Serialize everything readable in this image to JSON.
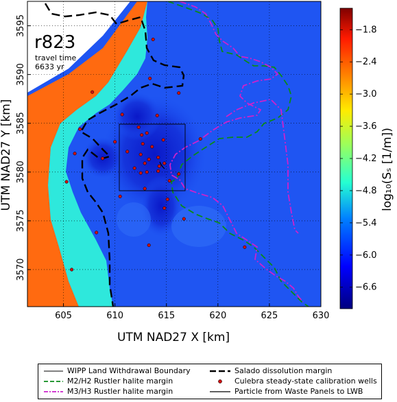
{
  "map": {
    "title": "r823",
    "annotation_line1": "travel time",
    "annotation_line2": "6633 yr",
    "xlabel": "UTM NAD27 X [km]",
    "ylabel": "UTM NAD27 Y [km]",
    "xticks": [
      "605",
      "610",
      "615",
      "620",
      "625",
      "630"
    ],
    "yticks": [
      "3570",
      "3575",
      "3580",
      "3585",
      "3590",
      "3595"
    ],
    "xlim": [
      601.5,
      630
    ],
    "ylim": [
      3566.2,
      3597.5
    ]
  },
  "colorbar": {
    "label": "log₁₀(Sₛ [1/m])",
    "ticks": [
      "−1.8",
      "−2.4",
      "−3.0",
      "−3.6",
      "−4.2",
      "−4.8",
      "−5.4",
      "−6.0",
      "−6.6"
    ],
    "range": [
      -7.0,
      -1.4
    ],
    "colors": {
      "low": "#00007f",
      "mid_low": "#0050ff",
      "mid": "#29ffce",
      "mid_high": "#ffc400",
      "high": "#7f0000",
      "zone_low_region": "#1a4cf0",
      "zone_cyan": "#2ee8dc",
      "zone_orange": "#ff6a10"
    }
  },
  "legend": {
    "items": [
      {
        "label": "WIPP Land Withdrawal Boundary",
        "color": "#000000",
        "style": "solid-thin"
      },
      {
        "label": "Salado dissolution margin",
        "color": "#000000",
        "style": "dashed-thick"
      },
      {
        "label": "M2/H2 Rustler halite margin",
        "color": "#007f00",
        "style": "dashed"
      },
      {
        "label": "Culebra steady-state calibration wells",
        "color": "#cc1111",
        "style": "dot"
      },
      {
        "label": "M3/H3 Rustler halite margin",
        "color": "#cc22cc",
        "style": "dashdot"
      },
      {
        "label": "Particle from Waste Panels to LWB",
        "color": "#000000",
        "style": "solid"
      }
    ]
  },
  "wells": [
    [
      613.7,
      3593.6
    ],
    [
      613.4,
      3589.6
    ],
    [
      607.8,
      3588.2
    ],
    [
      616.2,
      3588.1
    ],
    [
      610.7,
      3585.9
    ],
    [
      614.1,
      3585.8
    ],
    [
      612.3,
      3584.6
    ],
    [
      606.6,
      3584.4
    ],
    [
      612.6,
      3583.8
    ],
    [
      613.1,
      3584.0
    ],
    [
      618.3,
      3583.4
    ],
    [
      610.0,
      3583.1
    ],
    [
      614.7,
      3583.3
    ],
    [
      612.7,
      3582.9
    ],
    [
      613.6,
      3582.6
    ],
    [
      611.2,
      3582.1
    ],
    [
      606.1,
      3581.9
    ],
    [
      612.5,
      3581.8
    ],
    [
      613.3,
      3581.3
    ],
    [
      614.2,
      3581.5
    ],
    [
      608.8,
      3581.4
    ],
    [
      612.9,
      3580.9
    ],
    [
      614.8,
      3580.9
    ],
    [
      614.3,
      3580.6
    ],
    [
      614.2,
      3580.1
    ],
    [
      611.9,
      3580.4
    ],
    [
      612.5,
      3579.9
    ],
    [
      613.1,
      3580.0
    ],
    [
      616.2,
      3579.8
    ],
    [
      615.3,
      3579.1
    ],
    [
      612.9,
      3578.3
    ],
    [
      605.3,
      3579.0
    ],
    [
      610.5,
      3577.5
    ],
    [
      615.1,
      3577.2
    ],
    [
      614.8,
      3576.3
    ],
    [
      616.7,
      3575.2
    ],
    [
      608.2,
      3573.8
    ],
    [
      613.3,
      3572.5
    ],
    [
      622.6,
      3572.3
    ],
    [
      605.8,
      3570.0
    ]
  ]
}
